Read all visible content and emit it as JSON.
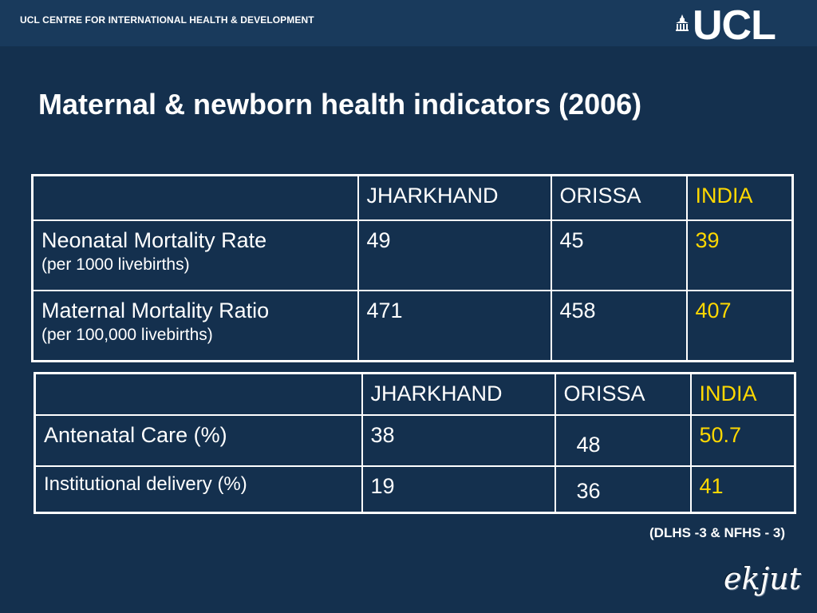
{
  "header": {
    "org": "UCL CENTRE FOR INTERNATIONAL HEALTH & DEVELOPMENT",
    "logo_text": "UCL"
  },
  "title": "Maternal & newborn health indicators (2006)",
  "table1": {
    "columns": [
      "",
      "JHARKHAND",
      "ORISSA",
      "INDIA"
    ],
    "rows": [
      {
        "label": "Neonatal Mortality Rate",
        "unit": "(per 1000 livebirths)",
        "values": [
          "49",
          "45",
          "39"
        ]
      },
      {
        "label": "Maternal Mortality Ratio",
        "unit": "(per 100,000 livebirths)",
        "values": [
          "471",
          "458",
          "407"
        ]
      }
    ]
  },
  "table2": {
    "columns": [
      "",
      "JHARKHAND",
      "ORISSA",
      "INDIA"
    ],
    "rows": [
      {
        "label": "Antenatal Care (%)",
        "values": [
          "38",
          "48",
          "50.7"
        ]
      },
      {
        "label": "Institutional delivery (%)",
        "values": [
          "19",
          "36",
          "41"
        ]
      }
    ]
  },
  "source": "(DLHS -3 & NFHS - 3)",
  "watermark": "ekjut",
  "colors": {
    "background": "#14304e",
    "header_bar": "#193a5c",
    "highlight": "#ffd800"
  }
}
